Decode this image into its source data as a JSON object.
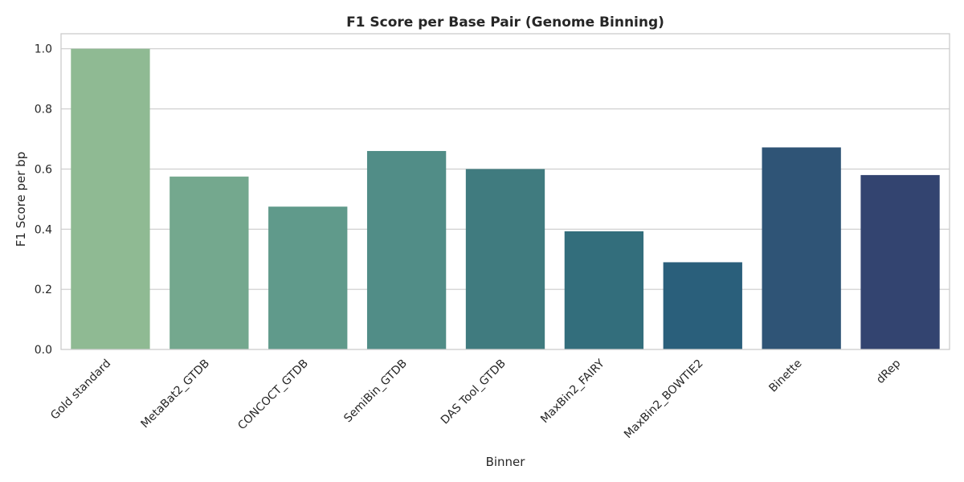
{
  "chart_data": {
    "type": "bar",
    "title": "F1 Score per Base Pair (Genome Binning)",
    "xlabel": "Binner",
    "ylabel": "F1 Score per bp",
    "categories": [
      "Gold standard",
      "MetaBat2_GTDB",
      "CONCOCT_GTDB",
      "SemiBin_GTDB",
      "DAS Tool_GTDB",
      "MaxBin2_FAIRY",
      "MaxBin2_BOWTIE2",
      "Binette",
      "dRep"
    ],
    "values": [
      1.0,
      0.575,
      0.475,
      0.66,
      0.6,
      0.393,
      0.29,
      0.672,
      0.58
    ],
    "colors": [
      "#8fba93",
      "#74a88e",
      "#609a8b",
      "#518d87",
      "#407b7f",
      "#336e7c",
      "#2a5f7b",
      "#2f5476",
      "#334470"
    ],
    "ylim": [
      0,
      1.05
    ],
    "yticks": [
      0.0,
      0.2,
      0.4,
      0.6,
      0.8,
      1.0
    ],
    "ytick_labels": [
      "0.0",
      "0.2",
      "0.4",
      "0.6",
      "0.8",
      "1.0"
    ],
    "grid": "y",
    "legend": "none"
  }
}
